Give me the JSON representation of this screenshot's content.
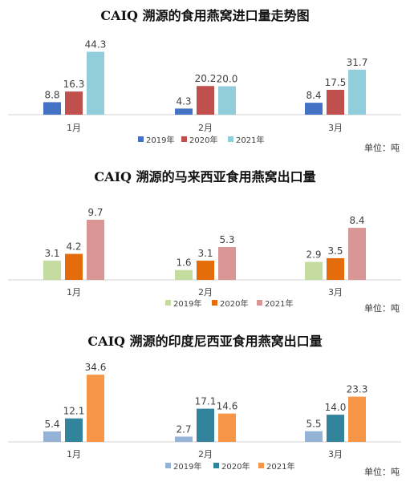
{
  "unit_label": "单位：吨",
  "chart_data": [
    {
      "type": "bar",
      "title": "CAIQ 溯源的食用燕窝进口量走势图",
      "categories": [
        "1月",
        "2月",
        "3月"
      ],
      "series": [
        {
          "name": "2019年",
          "color": "#4472C4",
          "values": [
            8.8,
            4.3,
            8.4
          ]
        },
        {
          "name": "2020年",
          "color": "#C0504D",
          "values": [
            16.3,
            20.2,
            17.5
          ]
        },
        {
          "name": "2021年",
          "color": "#92CDDC",
          "values": [
            44.3,
            20.0,
            31.7
          ]
        }
      ],
      "ylim": [
        0,
        48
      ],
      "grid": false,
      "legend": "bottom"
    },
    {
      "type": "bar",
      "title": "CAIQ  溯源的马来西亚食用燕窝出口量",
      "categories": [
        "1月",
        "2月",
        "3月"
      ],
      "series": [
        {
          "name": "2019年",
          "color": "#C4DCA0",
          "values": [
            3.1,
            1.6,
            2.9
          ]
        },
        {
          "name": "2020年",
          "color": "#E46C0A",
          "values": [
            4.2,
            3.1,
            3.5
          ]
        },
        {
          "name": "2021年",
          "color": "#D99694",
          "values": [
            9.7,
            5.3,
            8.4
          ]
        }
      ],
      "ylim": [
        0,
        11
      ],
      "grid": false,
      "legend": "bottom"
    },
    {
      "type": "bar",
      "title": "CAIQ  溯源的印度尼西亚食用燕窝出口量",
      "categories": [
        "1月",
        "2月",
        "3月"
      ],
      "series": [
        {
          "name": "2019年",
          "color": "#95B3D7",
          "values": [
            5.4,
            2.7,
            5.5
          ]
        },
        {
          "name": "2020年",
          "color": "#31849B",
          "values": [
            12.1,
            17.1,
            14.0
          ]
        },
        {
          "name": "2021年",
          "color": "#F79646",
          "values": [
            34.6,
            14.6,
            23.3
          ]
        }
      ],
      "ylim": [
        0,
        38
      ],
      "grid": false,
      "legend": "bottom"
    }
  ]
}
